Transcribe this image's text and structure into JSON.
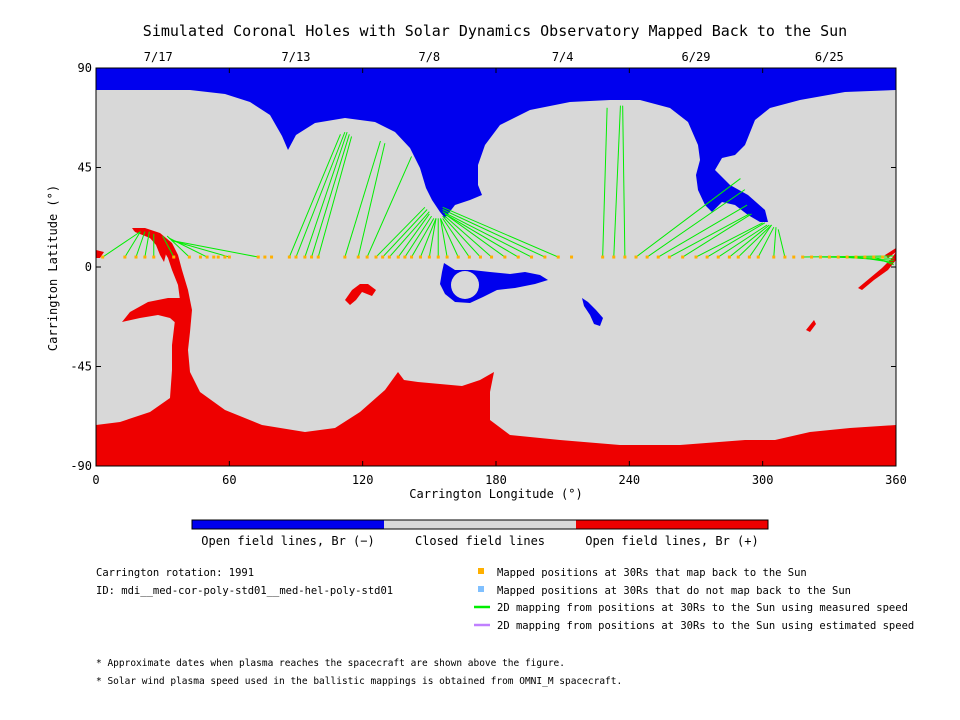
{
  "chart_data": {
    "type": "map",
    "title": "Simulated Coronal Holes with Solar Dynamics Observatory Mapped Back to the Sun",
    "xlabel": "Carrington Longitude (°)",
    "ylabel": "Carrington Latitude (°)",
    "xlim": [
      0,
      360
    ],
    "ylim": [
      -90,
      90
    ],
    "xticks": [
      0,
      60,
      120,
      180,
      240,
      300,
      360
    ],
    "yticks": [
      90,
      45,
      0,
      -45,
      -90
    ],
    "date_ticks": [
      {
        "lon": 28,
        "label": "7/17"
      },
      {
        "lon": 90,
        "label": "7/13"
      },
      {
        "lon": 150,
        "label": "7/8"
      },
      {
        "lon": 210,
        "label": "7/4"
      },
      {
        "lon": 270,
        "label": "6/29"
      },
      {
        "lon": 330,
        "label": "6/25"
      }
    ],
    "colors": {
      "open_negative": "#0000ee",
      "closed": "#d8d8d8",
      "open_positive": "#ee0000",
      "mapped_back": "#ffb000",
      "not_mapped_back": "#80c0ff",
      "measured_speed": "#00ee00",
      "estimated_speed": "#c080ff"
    },
    "colorbar_labels": [
      "Open field lines, Br (−)",
      "Closed field lines",
      "Open field lines, Br (+)"
    ],
    "mapped_positions_lon": [
      3,
      13,
      18,
      22,
      26,
      35,
      42,
      47,
      50,
      53,
      55,
      58,
      60,
      73,
      76,
      79,
      87,
      90,
      94,
      97,
      100,
      112,
      118,
      122,
      126,
      129,
      132,
      136,
      139,
      142,
      146,
      150,
      154,
      158,
      163,
      168,
      173,
      178,
      184,
      190,
      196,
      202,
      208,
      214,
      228,
      233,
      238,
      243,
      248,
      253,
      258,
      264,
      270,
      275,
      280,
      285,
      289,
      294,
      298,
      305,
      310,
      314,
      318,
      322,
      326,
      330,
      334,
      338,
      342,
      346,
      350,
      354
    ],
    "mapped_positions_lat": 4.5,
    "mapping_lines": [
      {
        "from": [
          3,
          4.5
        ],
        "to": [
          20,
          16
        ]
      },
      {
        "from": [
          13,
          4.5
        ],
        "to": [
          20,
          16
        ]
      },
      {
        "from": [
          18,
          4.5
        ],
        "to": [
          22,
          16
        ]
      },
      {
        "from": [
          22,
          4.5
        ],
        "to": [
          24,
          16
        ]
      },
      {
        "from": [
          26,
          4.5
        ],
        "to": [
          26,
          15
        ]
      },
      {
        "from": [
          35,
          4.5
        ],
        "to": [
          30,
          14
        ]
      },
      {
        "from": [
          42,
          4.5
        ],
        "to": [
          32,
          14
        ]
      },
      {
        "from": [
          50,
          4.5
        ],
        "to": [
          33,
          13
        ]
      },
      {
        "from": [
          60,
          4.5
        ],
        "to": [
          34,
          12
        ]
      },
      {
        "from": [
          73,
          4.5
        ],
        "to": [
          34,
          12
        ]
      },
      {
        "from": [
          87,
          4.5
        ],
        "to": [
          110,
          60
        ]
      },
      {
        "from": [
          90,
          4.5
        ],
        "to": [
          112,
          61
        ]
      },
      {
        "from": [
          94,
          4.5
        ],
        "to": [
          113,
          61
        ]
      },
      {
        "from": [
          97,
          4.5
        ],
        "to": [
          114,
          60
        ]
      },
      {
        "from": [
          100,
          4.5
        ],
        "to": [
          115,
          59
        ]
      },
      {
        "from": [
          112,
          4.5
        ],
        "to": [
          128,
          57
        ]
      },
      {
        "from": [
          118,
          4.5
        ],
        "to": [
          130,
          56
        ]
      },
      {
        "from": [
          122,
          4.5
        ],
        "to": [
          142,
          50
        ]
      },
      {
        "from": [
          126,
          4.5
        ],
        "to": [
          148,
          27
        ]
      },
      {
        "from": [
          129,
          4.5
        ],
        "to": [
          149,
          26
        ]
      },
      {
        "from": [
          132,
          4.5
        ],
        "to": [
          150,
          25
        ]
      },
      {
        "from": [
          136,
          4.5
        ],
        "to": [
          150,
          24
        ]
      },
      {
        "from": [
          139,
          4.5
        ],
        "to": [
          151,
          23
        ]
      },
      {
        "from": [
          142,
          4.5
        ],
        "to": [
          152,
          22
        ]
      },
      {
        "from": [
          146,
          4.5
        ],
        "to": [
          153,
          22
        ]
      },
      {
        "from": [
          150,
          4.5
        ],
        "to": [
          153,
          22
        ]
      },
      {
        "from": [
          154,
          4.5
        ],
        "to": [
          154,
          22
        ]
      },
      {
        "from": [
          158,
          4.5
        ],
        "to": [
          155,
          22
        ]
      },
      {
        "from": [
          163,
          4.5
        ],
        "to": [
          155,
          22
        ]
      },
      {
        "from": [
          168,
          4.5
        ],
        "to": [
          156,
          22
        ]
      },
      {
        "from": [
          173,
          4.5
        ],
        "to": [
          156,
          23
        ]
      },
      {
        "from": [
          178,
          4.5
        ],
        "to": [
          157,
          23
        ]
      },
      {
        "from": [
          184,
          4.5
        ],
        "to": [
          157,
          24
        ]
      },
      {
        "from": [
          190,
          4.5
        ],
        "to": [
          157,
          24
        ]
      },
      {
        "from": [
          196,
          4.5
        ],
        "to": [
          156,
          25
        ]
      },
      {
        "from": [
          202,
          4.5
        ],
        "to": [
          156,
          26
        ]
      },
      {
        "from": [
          208,
          4.5
        ],
        "to": [
          156,
          27
        ]
      },
      {
        "from": [
          228,
          4.5
        ],
        "to": [
          230,
          72
        ]
      },
      {
        "from": [
          233,
          4.5
        ],
        "to": [
          236,
          73
        ]
      },
      {
        "from": [
          238,
          4.5
        ],
        "to": [
          237,
          73
        ]
      },
      {
        "from": [
          243,
          4.5
        ],
        "to": [
          290,
          40
        ]
      },
      {
        "from": [
          248,
          4.5
        ],
        "to": [
          292,
          35
        ]
      },
      {
        "from": [
          253,
          4.5
        ],
        "to": [
          293,
          28
        ]
      },
      {
        "from": [
          258,
          4.5
        ],
        "to": [
          294,
          24
        ]
      },
      {
        "from": [
          264,
          4.5
        ],
        "to": [
          295,
          24
        ]
      },
      {
        "from": [
          270,
          4.5
        ],
        "to": [
          300,
          20
        ]
      },
      {
        "from": [
          275,
          4.5
        ],
        "to": [
          301,
          20
        ]
      },
      {
        "from": [
          280,
          4.5
        ],
        "to": [
          302,
          19
        ]
      },
      {
        "from": [
          285,
          4.5
        ],
        "to": [
          303,
          19
        ]
      },
      {
        "from": [
          289,
          4.5
        ],
        "to": [
          304,
          19
        ]
      },
      {
        "from": [
          294,
          4.5
        ],
        "to": [
          304,
          19
        ]
      },
      {
        "from": [
          298,
          4.5
        ],
        "to": [
          305,
          18
        ]
      },
      {
        "from": [
          305,
          4.5
        ],
        "to": [
          306,
          18
        ]
      },
      {
        "from": [
          310,
          4.5
        ],
        "to": [
          307,
          17
        ]
      },
      {
        "from": [
          318,
          4.5
        ],
        "to": [
          359,
          5
        ]
      },
      {
        "from": [
          326,
          4.5
        ],
        "to": [
          359,
          4
        ]
      },
      {
        "from": [
          334,
          4.5
        ],
        "to": [
          359,
          3
        ]
      },
      {
        "from": [
          342,
          4.5
        ],
        "to": [
          359,
          2
        ]
      },
      {
        "from": [
          350,
          4.5
        ],
        "to": [
          359,
          1
        ]
      }
    ],
    "legend": [
      {
        "marker": "square",
        "color": "#ffb000",
        "label": "Mapped positions at 30Rs that map back to the Sun"
      },
      {
        "marker": "square",
        "color": "#80c0ff",
        "label": "Mapped positions at 30Rs that do not map back to the Sun"
      },
      {
        "marker": "line",
        "color": "#00ee00",
        "label": "2D mapping from positions at 30Rs to the Sun using measured speed"
      },
      {
        "marker": "line",
        "color": "#c080ff",
        "label": "2D mapping from positions at 30Rs to the Sun using estimated speed"
      }
    ],
    "info": [
      "Carrington rotation: 1991",
      "ID: mdi__med-cor-poly-std01__med-hel-poly-std01"
    ],
    "notes": [
      "* Approximate dates when plasma reaches the spacecraft are shown above the figure.",
      "* Solar wind plasma speed used in the ballistic mappings is obtained from OMNI_M spacecraft."
    ]
  }
}
